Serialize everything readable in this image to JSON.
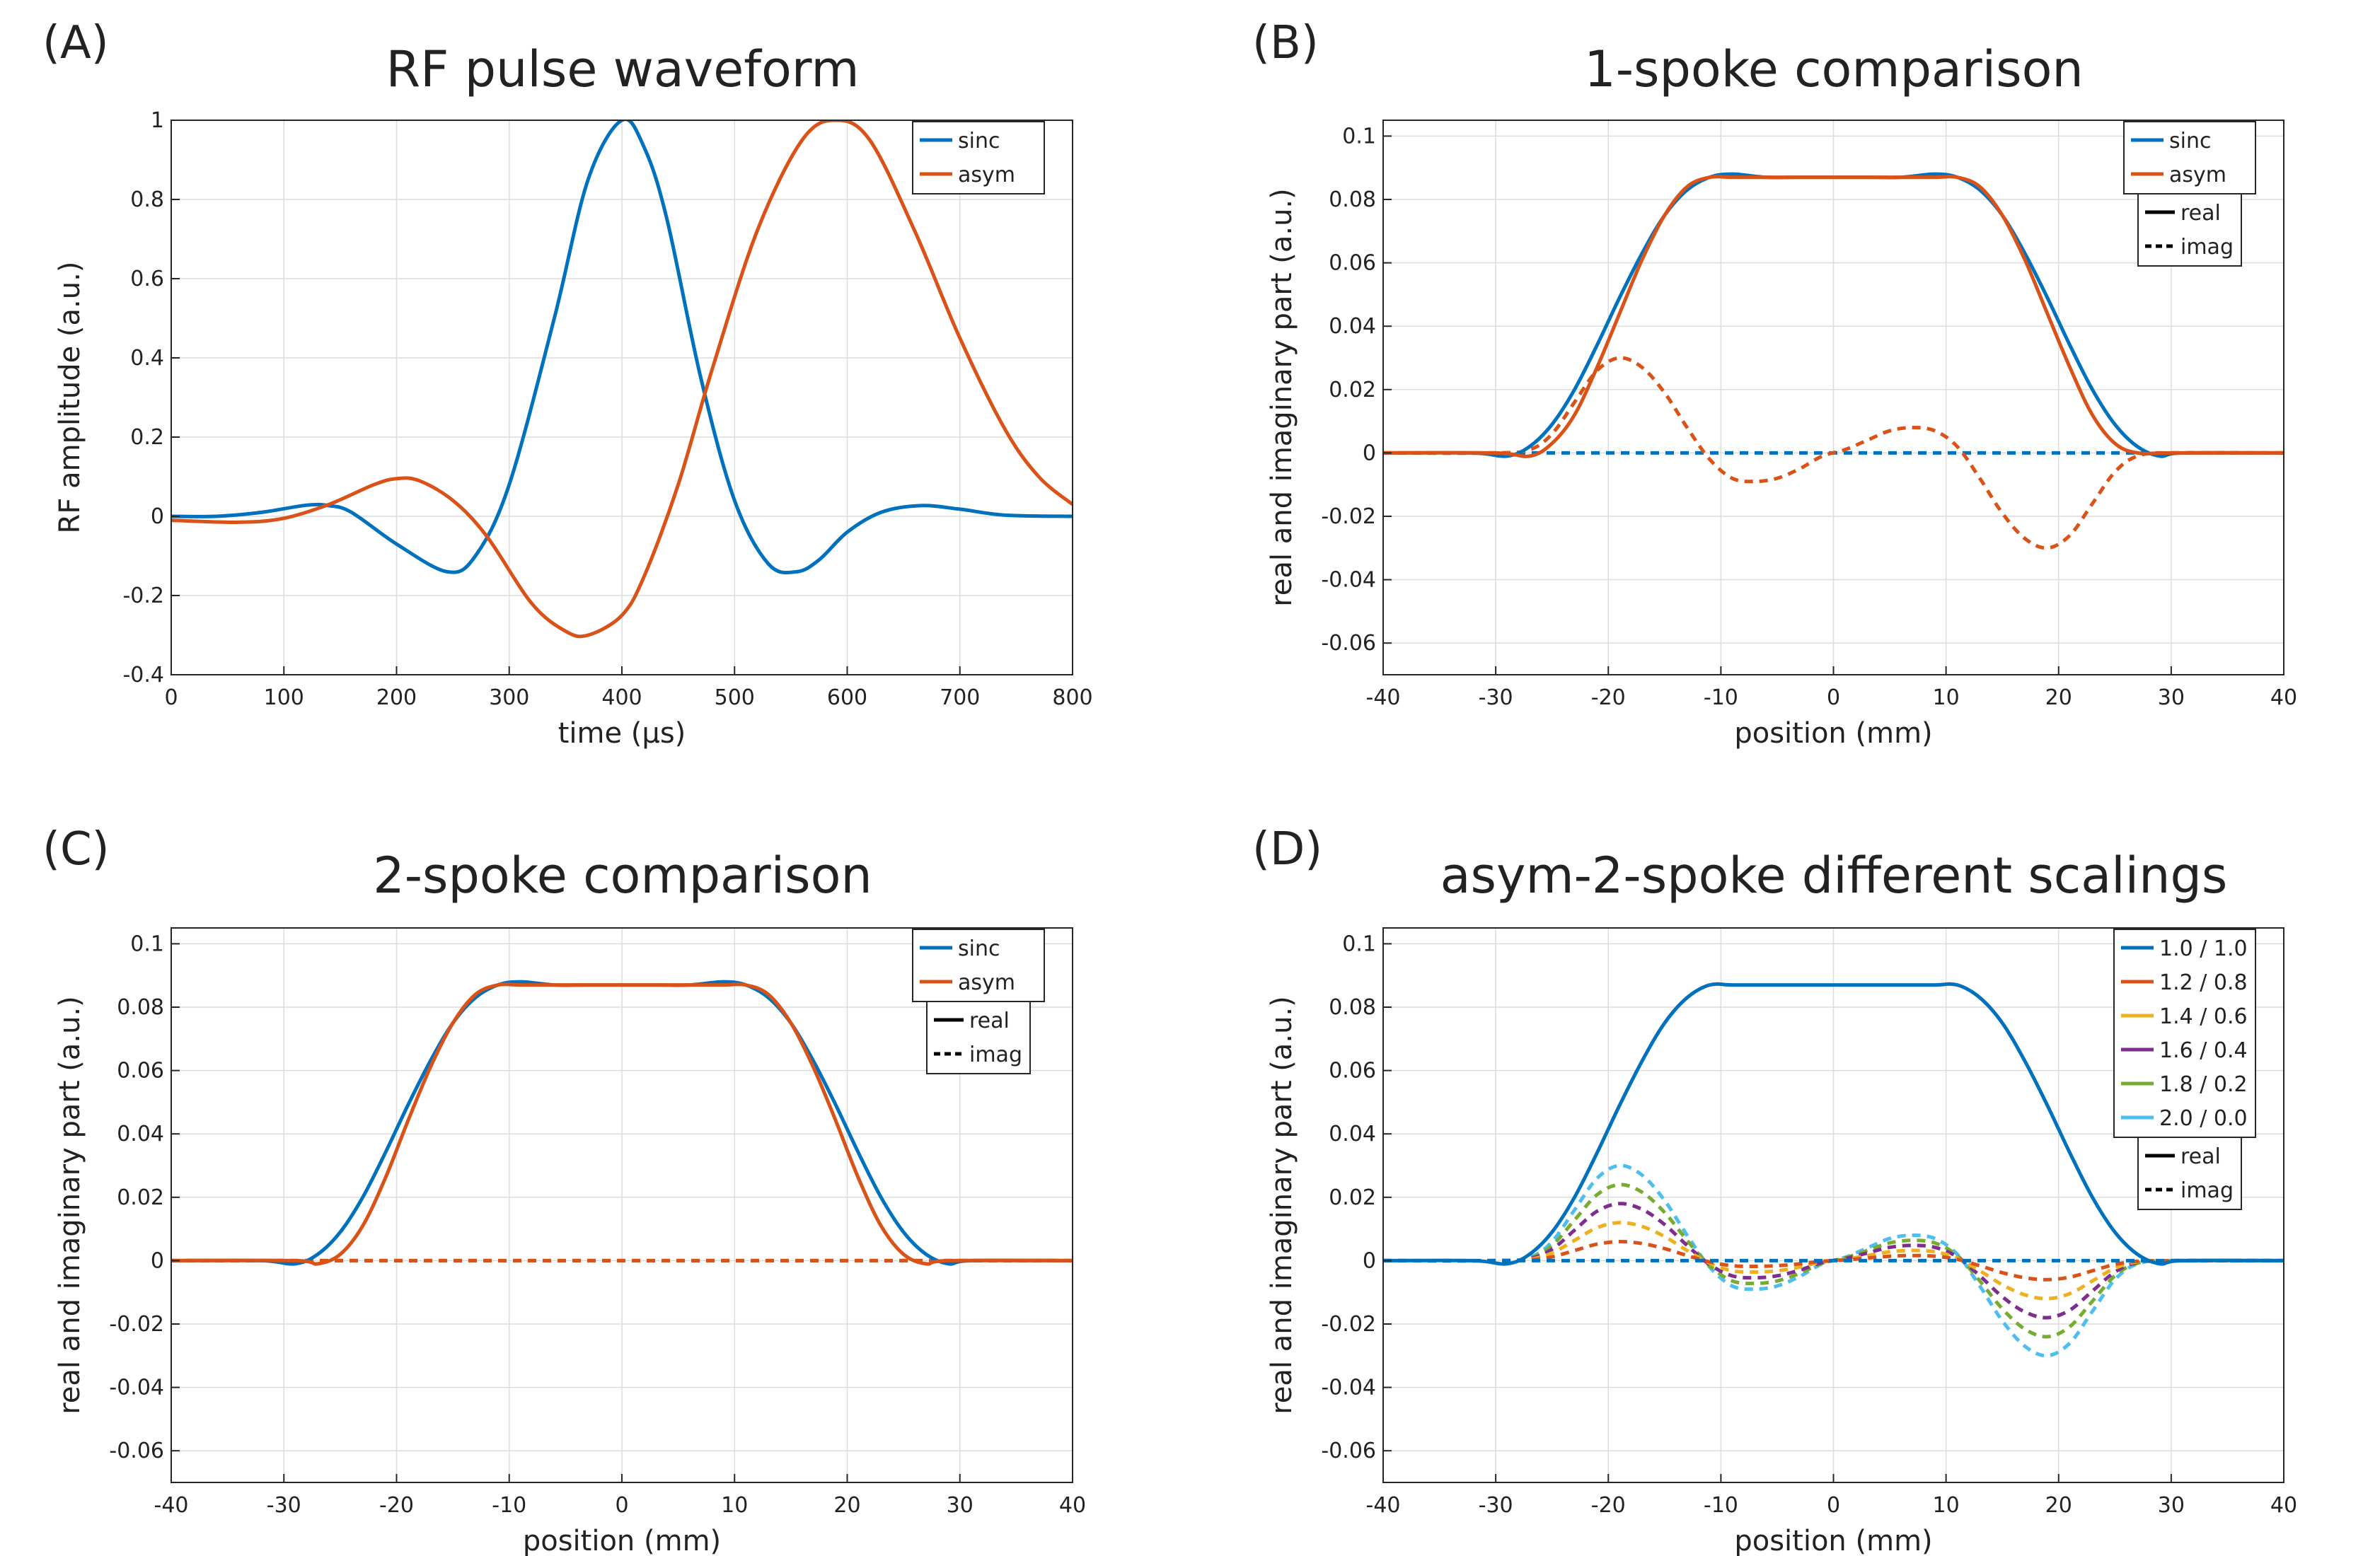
{
  "chart_data": [
    {
      "type": "line",
      "panel_label": "(A)",
      "title": "RF pulse waveform",
      "xlabel": "time (μs)",
      "ylabel": "RF amplitude (a.u.)",
      "xlim": [
        0,
        800
      ],
      "ylim": [
        -0.4,
        1
      ],
      "xticks": [
        0,
        100,
        200,
        300,
        400,
        500,
        600,
        700,
        800
      ],
      "xtick_labels": [
        "0",
        "100",
        "200",
        "300",
        "400",
        "500",
        "600",
        "700",
        "800"
      ],
      "yticks": [
        -0.4,
        -0.2,
        0,
        0.2,
        0.4,
        0.6,
        0.8,
        1
      ],
      "ytick_labels": [
        "-0.4",
        "-0.2",
        "0",
        "0.2",
        "0.4",
        "0.6",
        "0.8",
        "1"
      ],
      "grid": true,
      "legend_position": "top-right",
      "series": [
        {
          "name": "sinc",
          "color": "#0072BD",
          "style": "solid",
          "x": [
            0,
            40,
            80,
            120,
            140,
            160,
            200,
            245,
            270,
            300,
            340,
            370,
            400,
            420,
            440,
            470,
            500,
            530,
            555,
            575,
            600,
            630,
            665,
            700,
            740,
            800
          ],
          "y": [
            0,
            0,
            0.01,
            0.028,
            0.027,
            0.01,
            -0.07,
            -0.14,
            -0.1,
            0.08,
            0.5,
            0.85,
            1,
            0.93,
            0.75,
            0.35,
            0.04,
            -0.12,
            -0.14,
            -0.11,
            -0.04,
            0.01,
            0.027,
            0.018,
            0.003,
            0
          ]
        },
        {
          "name": "asym",
          "color": "#D95319",
          "style": "solid",
          "x": [
            0,
            60,
            100,
            140,
            180,
            200,
            220,
            250,
            280,
            320,
            350,
            370,
            400,
            420,
            450,
            480,
            520,
            560,
            590,
            620,
            660,
            700,
            740,
            770,
            800
          ],
          "y": [
            -0.01,
            -0.015,
            -0.005,
            0.03,
            0.08,
            0.095,
            0.09,
            0.04,
            -0.05,
            -0.22,
            -0.29,
            -0.3,
            -0.25,
            -0.15,
            0.08,
            0.37,
            0.72,
            0.95,
            1,
            0.95,
            0.72,
            0.45,
            0.22,
            0.1,
            0.03
          ]
        }
      ]
    },
    {
      "type": "line",
      "panel_label": "(B)",
      "title": "1-spoke comparison",
      "xlabel": "position (mm)",
      "ylabel": "real and imaginary part (a.u.)",
      "xlim": [
        -40,
        40
      ],
      "ylim": [
        -0.07,
        0.105
      ],
      "xticks": [
        -40,
        -30,
        -20,
        -10,
        0,
        10,
        20,
        30,
        40
      ],
      "xtick_labels": [
        "-40",
        "-30",
        "-20",
        "-10",
        "0",
        "10",
        "20",
        "30",
        "40"
      ],
      "yticks": [
        -0.06,
        -0.04,
        -0.02,
        0,
        0.02,
        0.04,
        0.06,
        0.08,
        0.1
      ],
      "ytick_labels": [
        "-0.06",
        "-0.04",
        "-0.02",
        "0",
        "0.02",
        "0.04",
        "0.06",
        "0.08",
        "0.1"
      ],
      "grid": true,
      "legend_position": "top-right",
      "legend": [
        "sinc",
        "asym"
      ],
      "style_legend": [
        "real",
        "imag"
      ],
      "series": [
        {
          "name": "sinc real",
          "color": "#0072BD",
          "style": "solid",
          "x": [
            -40,
            -32,
            -29,
            -27,
            -25,
            -23,
            -21,
            -19,
            -17,
            -15,
            -13,
            -11,
            -9,
            -6,
            -3,
            0,
            3,
            6,
            9,
            11,
            13,
            15,
            17,
            19,
            21,
            23,
            25,
            27,
            29,
            31,
            40
          ],
          "y": [
            0,
            0,
            -0.001,
            0.002,
            0.009,
            0.02,
            0.034,
            0.049,
            0.063,
            0.075,
            0.083,
            0.087,
            0.088,
            0.087,
            0.087,
            0.087,
            0.087,
            0.087,
            0.088,
            0.087,
            0.083,
            0.075,
            0.063,
            0.049,
            0.034,
            0.02,
            0.009,
            0.002,
            -0.001,
            0,
            0
          ]
        },
        {
          "name": "asym real",
          "color": "#D95319",
          "style": "solid",
          "x": [
            -40,
            -30,
            -27,
            -25,
            -23,
            -21,
            -19,
            -17,
            -15,
            -13,
            -11,
            -9,
            -6,
            -3,
            0,
            3,
            6,
            9,
            11,
            13,
            15,
            17,
            19,
            21,
            23,
            25,
            27,
            30,
            40
          ],
          "y": [
            0,
            0,
            -0.001,
            0.003,
            0.012,
            0.027,
            0.044,
            0.061,
            0.075,
            0.084,
            0.087,
            0.087,
            0.087,
            0.087,
            0.087,
            0.087,
            0.087,
            0.087,
            0.087,
            0.084,
            0.075,
            0.061,
            0.044,
            0.027,
            0.012,
            0.003,
            0,
            0,
            0
          ]
        },
        {
          "name": "sinc imag",
          "color": "#0072BD",
          "style": "dashed",
          "x": [
            -40,
            40
          ],
          "y": [
            0,
            0
          ]
        },
        {
          "name": "asym imag",
          "color": "#D95319",
          "style": "dashed",
          "x": [
            -40,
            -30,
            -27,
            -25,
            -23,
            -21,
            -19,
            -17,
            -15,
            -13,
            -11,
            -9,
            -7,
            -5,
            -3,
            -1,
            1,
            3,
            5,
            7,
            9,
            11,
            13,
            15,
            17,
            19,
            21,
            23,
            25,
            27,
            30,
            40
          ],
          "y": [
            0,
            0,
            0.001,
            0.006,
            0.016,
            0.026,
            0.03,
            0.027,
            0.019,
            0.008,
            -0.002,
            -0.008,
            -0.009,
            -0.008,
            -0.005,
            -0.001,
            0.001,
            0.004,
            0.007,
            0.008,
            0.007,
            0.002,
            -0.008,
            -0.019,
            -0.027,
            -0.03,
            -0.026,
            -0.016,
            -0.006,
            -0.001,
            0,
            0
          ]
        }
      ]
    },
    {
      "type": "line",
      "panel_label": "(C)",
      "title": "2-spoke comparison",
      "xlabel": "position (mm)",
      "ylabel": "real and imaginary part (a.u.)",
      "xlim": [
        -40,
        40
      ],
      "ylim": [
        -0.07,
        0.105
      ],
      "xticks": [
        -40,
        -30,
        -20,
        -10,
        0,
        10,
        20,
        30,
        40
      ],
      "xtick_labels": [
        "-40",
        "-30",
        "-20",
        "-10",
        "0",
        "10",
        "20",
        "30",
        "40"
      ],
      "yticks": [
        -0.06,
        -0.04,
        -0.02,
        0,
        0.02,
        0.04,
        0.06,
        0.08,
        0.1
      ],
      "ytick_labels": [
        "-0.06",
        "-0.04",
        "-0.02",
        "0",
        "0.02",
        "0.04",
        "0.06",
        "0.08",
        "0.1"
      ],
      "grid": true,
      "legend_position": "top-right",
      "legend": [
        "sinc",
        "asym"
      ],
      "style_legend": [
        "real",
        "imag"
      ],
      "series": [
        {
          "name": "sinc real",
          "color": "#0072BD",
          "style": "solid",
          "x": [
            -40,
            -32,
            -29,
            -27,
            -25,
            -23,
            -21,
            -19,
            -17,
            -15,
            -13,
            -11,
            -9,
            -6,
            -3,
            0,
            3,
            6,
            9,
            11,
            13,
            15,
            17,
            19,
            21,
            23,
            25,
            27,
            29,
            31,
            40
          ],
          "y": [
            0,
            0,
            -0.001,
            0.002,
            0.009,
            0.02,
            0.034,
            0.049,
            0.063,
            0.075,
            0.083,
            0.087,
            0.088,
            0.087,
            0.087,
            0.087,
            0.087,
            0.087,
            0.088,
            0.087,
            0.083,
            0.075,
            0.063,
            0.049,
            0.034,
            0.02,
            0.009,
            0.002,
            -0.001,
            0,
            0
          ]
        },
        {
          "name": "asym real",
          "color": "#D95319",
          "style": "solid",
          "x": [
            -40,
            -29,
            -27,
            -25,
            -23,
            -21,
            -19,
            -17,
            -15,
            -13,
            -11,
            -9,
            -6,
            -3,
            0,
            3,
            6,
            9,
            11,
            13,
            15,
            17,
            19,
            21,
            23,
            25,
            27,
            29,
            40
          ],
          "y": [
            0,
            0,
            -0.001,
            0.002,
            0.011,
            0.026,
            0.044,
            0.061,
            0.075,
            0.084,
            0.087,
            0.087,
            0.087,
            0.087,
            0.087,
            0.087,
            0.087,
            0.087,
            0.087,
            0.084,
            0.075,
            0.061,
            0.044,
            0.026,
            0.011,
            0.002,
            -0.001,
            0,
            0
          ]
        },
        {
          "name": "sinc imag",
          "color": "#0072BD",
          "style": "dashed",
          "x": [
            -40,
            40
          ],
          "y": [
            0,
            0
          ]
        },
        {
          "name": "asym imag",
          "color": "#D95319",
          "style": "dashed",
          "x": [
            -40,
            40
          ],
          "y": [
            0,
            0
          ]
        }
      ]
    },
    {
      "type": "line",
      "panel_label": "(D)",
      "title": "asym-2-spoke different scalings",
      "xlabel": "position (mm)",
      "ylabel": "real and imaginary part (a.u.)",
      "xlim": [
        -40,
        40
      ],
      "ylim": [
        -0.07,
        0.105
      ],
      "xticks": [
        -40,
        -30,
        -20,
        -10,
        0,
        10,
        20,
        30,
        40
      ],
      "xtick_labels": [
        "-40",
        "-30",
        "-20",
        "-10",
        "0",
        "10",
        "20",
        "30",
        "40"
      ],
      "yticks": [
        -0.06,
        -0.04,
        -0.02,
        0,
        0.02,
        0.04,
        0.06,
        0.08,
        0.1
      ],
      "ytick_labels": [
        "-0.06",
        "-0.04",
        "-0.02",
        "0",
        "0.02",
        "0.04",
        "0.06",
        "0.08",
        "0.1"
      ],
      "grid": true,
      "legend_position": "top-right",
      "legend": [
        "1.0 / 1.0",
        "1.2 / 0.8",
        "1.4 / 0.6",
        "1.6 / 0.4",
        "1.8 / 0.2",
        "2.0 / 0.0"
      ],
      "legend_colors": [
        "#0072BD",
        "#D95319",
        "#EDB120",
        "#7E2F8E",
        "#77AC30",
        "#4DBEEE"
      ],
      "style_legend": [
        "real",
        "imag"
      ],
      "imag_shape": {
        "x": [
          -40,
          -30,
          -27,
          -25,
          -23,
          -21,
          -19,
          -17,
          -15,
          -13,
          -11,
          -9,
          -7,
          -5,
          -3,
          -1,
          1,
          3,
          5,
          7,
          9,
          11,
          13,
          15,
          17,
          19,
          21,
          23,
          25,
          27,
          30,
          40
        ],
        "y": [
          0,
          0,
          0.001,
          0.006,
          0.016,
          0.026,
          0.03,
          0.027,
          0.019,
          0.008,
          -0.002,
          -0.008,
          -0.009,
          -0.008,
          -0.005,
          -0.001,
          0.001,
          0.004,
          0.007,
          0.008,
          0.007,
          0.002,
          -0.008,
          -0.019,
          -0.027,
          -0.03,
          -0.026,
          -0.016,
          -0.006,
          -0.001,
          0,
          0
        ]
      },
      "imag_scales": [
        0,
        0.2,
        0.4,
        0.6,
        0.8,
        1.0
      ],
      "series": [
        {
          "name": "1.0 / 1.0 real",
          "color": "#0072BD",
          "style": "solid",
          "x": [
            -40,
            -32,
            -29,
            -27,
            -25,
            -23,
            -21,
            -19,
            -17,
            -15,
            -13,
            -11,
            -9,
            -6,
            -3,
            0,
            3,
            6,
            9,
            11,
            13,
            15,
            17,
            19,
            21,
            23,
            25,
            27,
            29,
            31,
            40
          ],
          "y": [
            0,
            0,
            -0.001,
            0.002,
            0.009,
            0.02,
            0.034,
            0.049,
            0.063,
            0.075,
            0.083,
            0.087,
            0.087,
            0.087,
            0.087,
            0.087,
            0.087,
            0.087,
            0.087,
            0.087,
            0.083,
            0.075,
            0.063,
            0.049,
            0.034,
            0.02,
            0.009,
            0.002,
            -0.001,
            0,
            0
          ]
        }
      ]
    }
  ]
}
